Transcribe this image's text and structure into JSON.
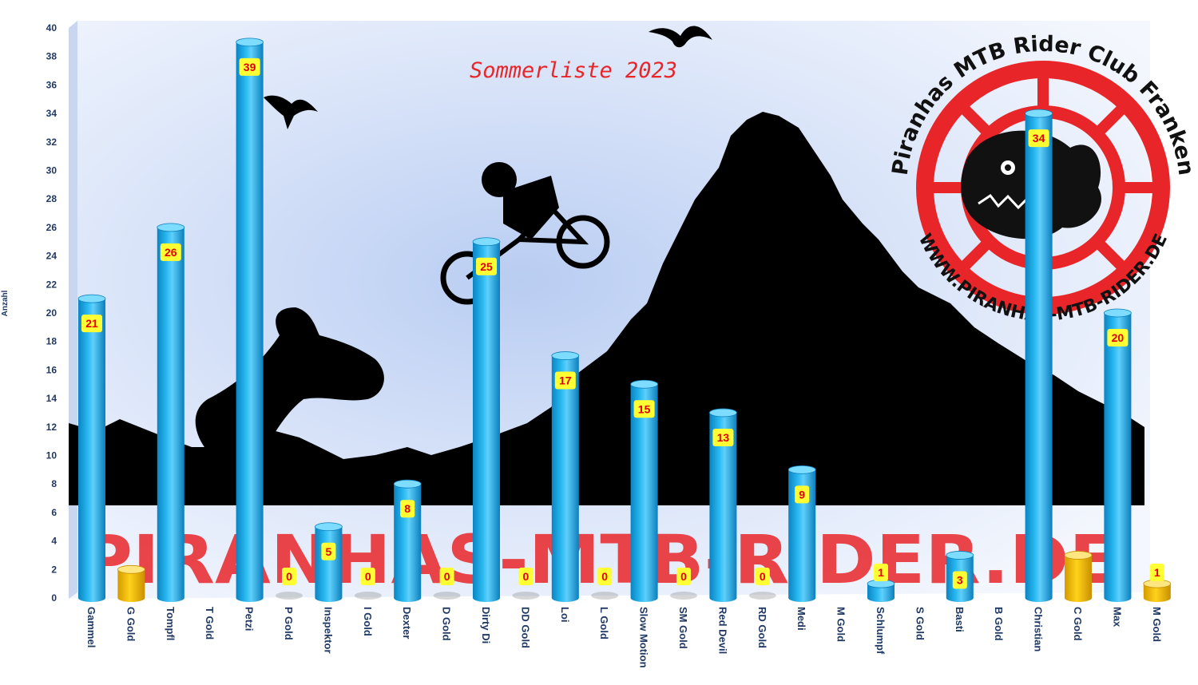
{
  "chart_data": {
    "type": "bar",
    "title": "Sommerliste 2023",
    "ylabel": "Anzahl",
    "xlabel": "",
    "ylim": [
      0,
      40
    ],
    "ytick_step": 2,
    "grid": false,
    "legend": "none",
    "categories": [
      "Gammel",
      "G Gold",
      "Tompfl",
      "T Gold",
      "Petzi",
      "P Gold",
      "Inspektor",
      "I Gold",
      "Dexter",
      "D Gold",
      "Dirty Di",
      "DD Gold",
      "Loi",
      "L Gold",
      "Slow Motion",
      "SM Gold",
      "Red Devil",
      "RD Gold",
      "Medi",
      "M Gold",
      "Schlumpf",
      "S Gold",
      "Basti",
      "B Gold",
      "Christian",
      "C Gold",
      "Max",
      "M Gold"
    ],
    "values": [
      21,
      2,
      26,
      null,
      39,
      0,
      5,
      0,
      8,
      0,
      25,
      0,
      17,
      0,
      15,
      0,
      13,
      0,
      9,
      null,
      1,
      null,
      3,
      null,
      34,
      3,
      20,
      1
    ],
    "data_labels": [
      "21",
      "",
      "26",
      "",
      "39",
      "0",
      "5",
      "0",
      "8",
      "0",
      "25",
      "0",
      "17",
      "0",
      "15",
      "0",
      "13",
      "0",
      "9",
      "",
      "1",
      "",
      "3",
      "",
      "34",
      "",
      "20",
      "1"
    ],
    "colors": {
      "rider": "#1aa7e2",
      "gold": "#f5c000",
      "label_box": "#ffff33",
      "label_text": "#e00000",
      "title": "#e8262a",
      "axis_text": "#1f3864"
    }
  },
  "logo": {
    "top_text": "Piranhas MTB Rider Club Franken",
    "url_text": "WWW.PIRANHAS-MTB-RIDER.DE"
  },
  "watermark": {
    "text": "PIRANHAS-MTB-RIDER.DE"
  }
}
